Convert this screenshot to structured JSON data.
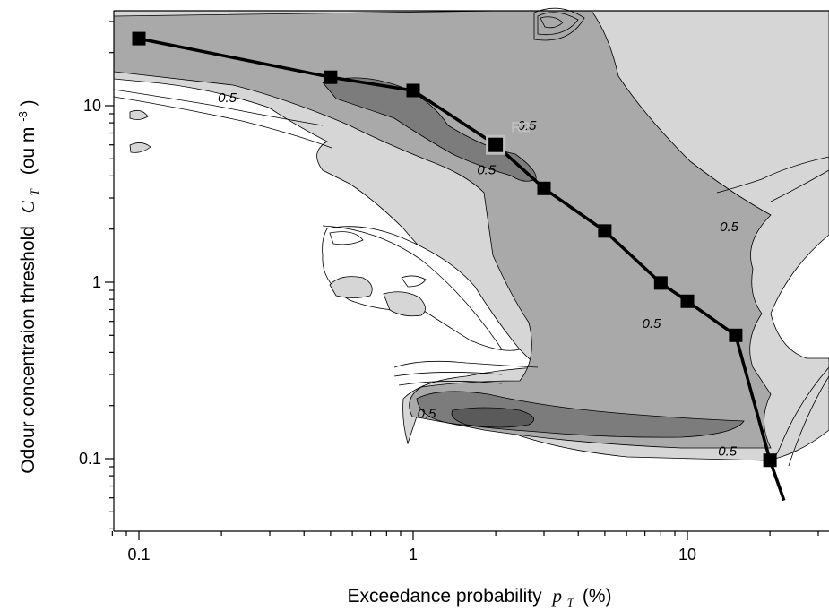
{
  "chart_data": {
    "type": "scatter",
    "xlabel": {
      "main": "Exceedance probability",
      "var": "p",
      "sub": "T",
      "unit": "(%)"
    },
    "ylabel": {
      "main": "Odour concentraion threshold",
      "var": "C",
      "sub": "T",
      "unit_pre": "(ou m",
      "unit_exp": "-3",
      "unit_post": ")"
    },
    "xscale": "log",
    "yscale": "log",
    "xlim": [
      0.08,
      35
    ],
    "ylim": [
      0.04,
      35
    ],
    "x_ticks": [
      {
        "value": 0.1,
        "label": "0.1"
      },
      {
        "value": 1,
        "label": "1"
      },
      {
        "value": 10,
        "label": "10"
      }
    ],
    "y_ticks": [
      {
        "value": 0.1,
        "label": "0.1"
      },
      {
        "value": 1,
        "label": "1"
      },
      {
        "value": 10,
        "label": "10"
      }
    ],
    "grid": false,
    "series": [
      {
        "marker": "square",
        "x": [
          0.1,
          0.5,
          1,
          2,
          3,
          5,
          8,
          10,
          15,
          20
        ],
        "y": [
          24,
          14.5,
          12.2,
          6,
          3.4,
          1.95,
          0.99,
          0.78,
          0.5,
          0.098
        ]
      }
    ],
    "line_extension": [
      {
        "x": 20,
        "y": 0.098
      },
      {
        "x": 22.5,
        "y": 0.058
      }
    ],
    "highlighted_point": {
      "label": "R2",
      "x": 2,
      "y": 6,
      "color": "#bfbfbf"
    },
    "contour_labels": [
      {
        "text": "0.5",
        "x": 0.21,
        "y": 10.5
      },
      {
        "text": "0.5",
        "x": 2.6,
        "y": 7.3
      },
      {
        "text": "0.5",
        "x": 1.85,
        "y": 4.1
      },
      {
        "text": "0.5",
        "x": 14.2,
        "y": 1.95
      },
      {
        "text": "0.5",
        "x": 7.4,
        "y": 0.55
      },
      {
        "text": "0.5",
        "x": 1.12,
        "y": 0.17
      },
      {
        "text": "0.5",
        "x": 14,
        "y": 0.104
      }
    ],
    "contour_fills": [
      "#d6d6d6",
      "#a9a9a9",
      "#7c7c7c"
    ]
  }
}
